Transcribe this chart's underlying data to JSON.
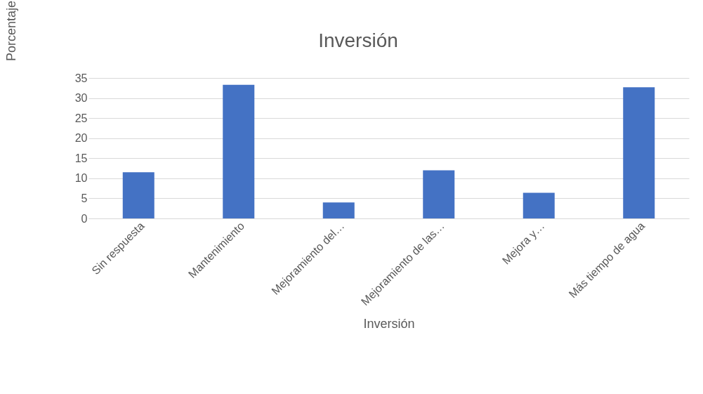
{
  "chart_data": {
    "type": "bar",
    "title": "Inversión",
    "xlabel": "Inversión",
    "ylabel": "Porcentaje",
    "categories": [
      "Sin respuesta",
      "Mantenimiento",
      "Mejoramiento del…",
      "Mejoramiento de las…",
      "Mejora y…",
      "Más tiempo de agua"
    ],
    "values": [
      11.5,
      33.3,
      4.0,
      12.0,
      6.4,
      32.7
    ],
    "color": "#4472c4",
    "ylim": [
      0,
      35
    ],
    "yticks": [
      0,
      5,
      10,
      15,
      20,
      25,
      30,
      35
    ],
    "grid": "y"
  }
}
